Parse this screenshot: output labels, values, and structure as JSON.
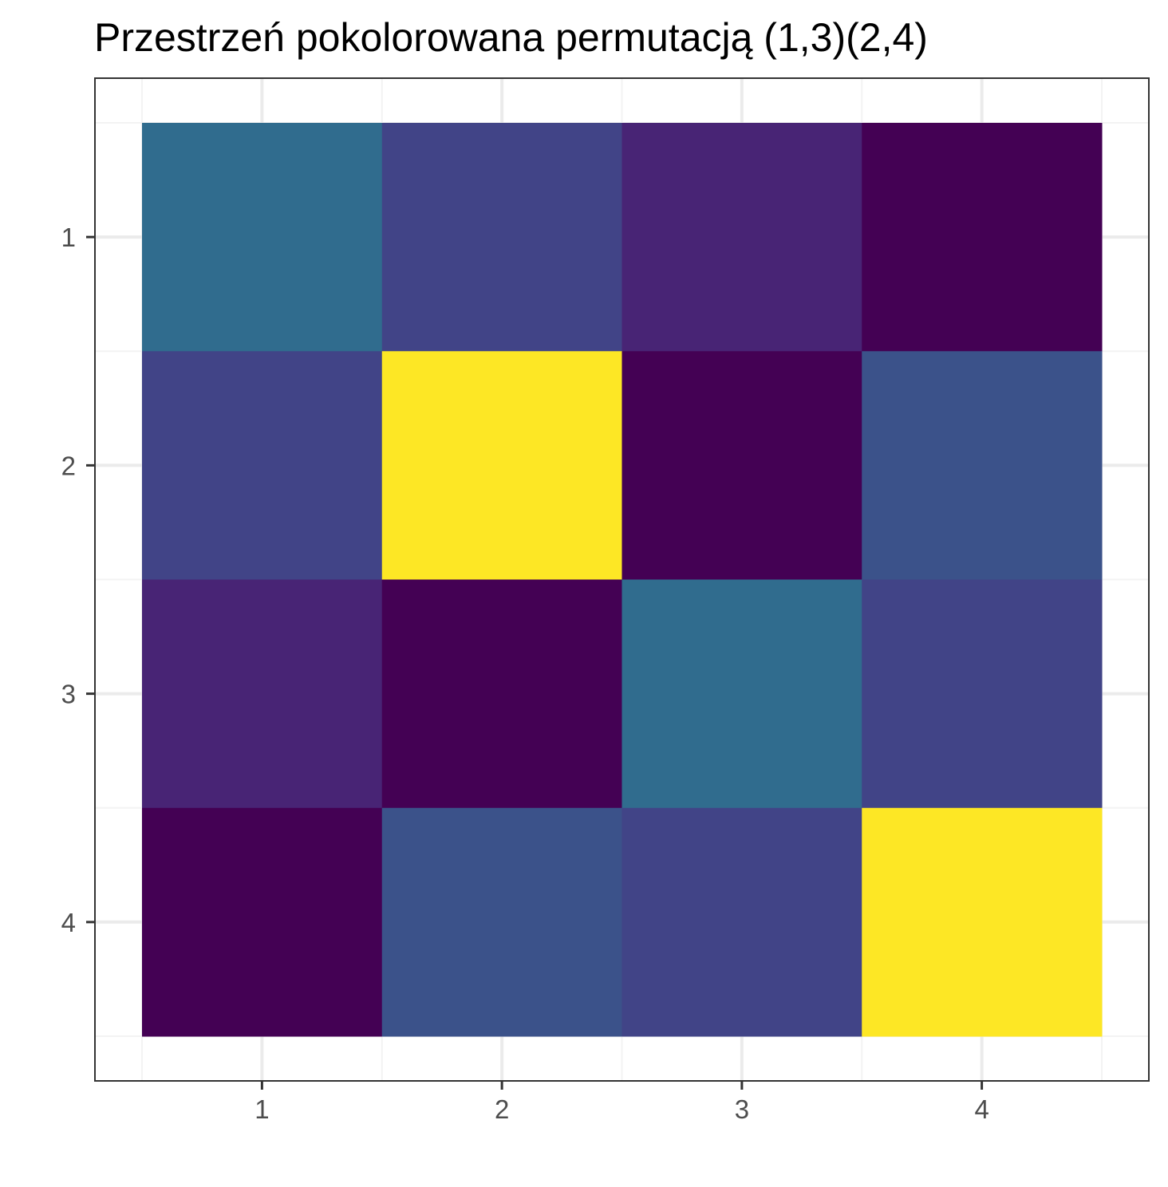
{
  "chart_data": {
    "type": "heatmap",
    "title": "Przestrzeń pokolorowana permutacją (1,3)(2,4)",
    "xlabel": "",
    "ylabel": "",
    "x_categories": [
      "1",
      "2",
      "3",
      "4"
    ],
    "y_categories": [
      "1",
      "2",
      "3",
      "4"
    ],
    "y_reversed": true,
    "grid": true,
    "legend": "none",
    "colorscale": "viridis",
    "value_range": [
      0,
      1
    ],
    "values": [
      [
        0.35,
        0.2,
        0.1,
        0.0
      ],
      [
        0.2,
        1.0,
        0.0,
        0.25
      ],
      [
        0.1,
        0.0,
        0.35,
        0.2
      ],
      [
        0.0,
        0.25,
        0.2,
        1.0
      ]
    ]
  },
  "colors": {
    "panel_border": "#333333",
    "grid_major": "#ebebeb",
    "grid_minor": "#f3f3f3",
    "tick_text": "#4d4d4d",
    "tick_mark": "#333333"
  }
}
